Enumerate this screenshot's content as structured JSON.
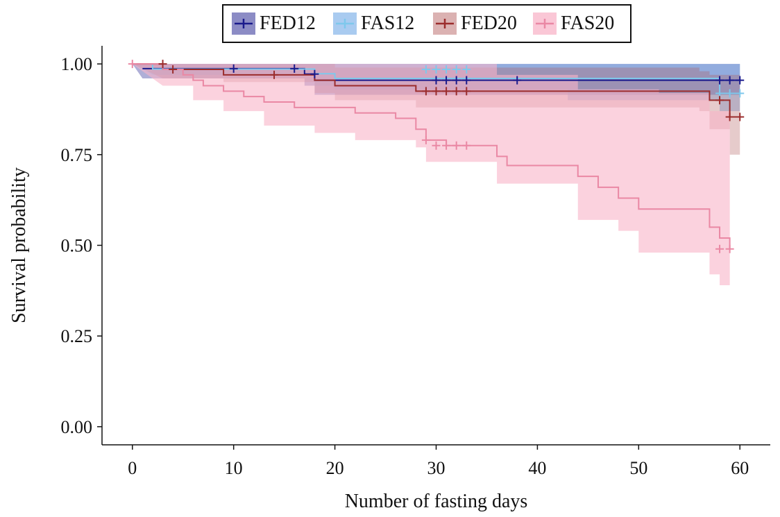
{
  "chart_data": {
    "type": "line",
    "title": "",
    "xlabel": "Number of fasting days",
    "ylabel": "Survival probability",
    "xlim": [
      -3,
      63
    ],
    "ylim": [
      -0.05,
      1.05
    ],
    "xticks": [
      0,
      10,
      20,
      30,
      40,
      50,
      60
    ],
    "yticks": [
      0.0,
      0.25,
      0.5,
      0.75,
      1.0
    ],
    "xtick_labels": [
      "0",
      "10",
      "20",
      "30",
      "40",
      "50",
      "60"
    ],
    "ytick_labels": [
      "0.00",
      "0.25",
      "0.50",
      "0.75",
      "1.00"
    ],
    "grid": false,
    "legend_position": "top-center",
    "series": [
      {
        "name": "FED12",
        "color": "#1a1a8c",
        "fill": "#1a1a8c",
        "fill_opacity": 0.35,
        "step": [
          [
            1,
            0.987
          ],
          [
            17,
            0.972
          ],
          [
            18,
            0.955
          ],
          [
            60,
            0.955
          ]
        ],
        "band_upper": [
          [
            0,
            1.0
          ],
          [
            17,
            1.0
          ],
          [
            43,
            1.0
          ],
          [
            60,
            1.0
          ]
        ],
        "band_lower": [
          [
            1,
            0.96
          ],
          [
            17,
            0.94
          ],
          [
            18,
            0.915
          ],
          [
            43,
            0.915
          ],
          [
            60,
            0.91
          ]
        ],
        "censor_x": [
          10,
          16,
          18,
          30,
          31,
          32,
          33,
          38,
          58,
          59,
          60
        ],
        "censor_y": [
          0.987,
          0.987,
          0.972,
          0.955,
          0.955,
          0.955,
          0.955,
          0.955,
          0.955,
          0.955,
          0.955
        ]
      },
      {
        "name": "FAS12",
        "color": "#7ec8ec",
        "fill": "#6fa9e6",
        "fill_opacity": 0.45,
        "step": [
          [
            0,
            1.0
          ],
          [
            2,
            0.986
          ],
          [
            18,
            0.973
          ],
          [
            20,
            0.96
          ],
          [
            58,
            0.919
          ],
          [
            60,
            0.919
          ]
        ],
        "band_upper": [
          [
            0,
            1.0
          ],
          [
            58,
            1.0
          ],
          [
            60,
            1.0
          ]
        ],
        "band_lower": [
          [
            2,
            0.97
          ],
          [
            18,
            0.94
          ],
          [
            20,
            0.93
          ],
          [
            43,
            0.9
          ],
          [
            58,
            0.87
          ],
          [
            60,
            0.87
          ]
        ],
        "censor_x": [
          29,
          30,
          31,
          32,
          33,
          58,
          59,
          60
        ],
        "censor_y": [
          0.985,
          0.985,
          0.985,
          0.985,
          0.985,
          0.919,
          0.919,
          0.919
        ]
      },
      {
        "name": "FED20",
        "color": "#9b2c2c",
        "fill": "#b25c5c",
        "fill_opacity": 0.32,
        "step": [
          [
            0,
            1.0
          ],
          [
            3,
            0.985
          ],
          [
            9,
            0.97
          ],
          [
            18,
            0.955
          ],
          [
            20,
            0.94
          ],
          [
            28,
            0.925
          ],
          [
            56,
            0.925
          ],
          [
            57,
            0.9
          ],
          [
            59,
            0.854
          ],
          [
            60,
            0.854
          ]
        ],
        "band_upper": [
          [
            0,
            1.0
          ],
          [
            20,
            0.99
          ],
          [
            56,
            0.98
          ],
          [
            57,
            0.97
          ],
          [
            60,
            0.97
          ]
        ],
        "band_lower": [
          [
            3,
            0.96
          ],
          [
            9,
            0.95
          ],
          [
            18,
            0.92
          ],
          [
            20,
            0.9
          ],
          [
            28,
            0.88
          ],
          [
            56,
            0.87
          ],
          [
            57,
            0.82
          ],
          [
            59,
            0.75
          ],
          [
            60,
            0.75
          ]
        ],
        "censor_x": [
          3,
          4,
          14,
          29,
          30,
          31,
          32,
          33,
          58,
          59,
          60
        ],
        "censor_y": [
          1.0,
          0.985,
          0.97,
          0.925,
          0.925,
          0.925,
          0.925,
          0.925,
          0.9,
          0.854,
          0.854
        ]
      },
      {
        "name": "FAS20",
        "color": "#ea88a4",
        "fill": "#f8b4c8",
        "fill_opacity": 0.6,
        "step": [
          [
            0,
            1.0
          ],
          [
            3,
            0.985
          ],
          [
            5,
            0.97
          ],
          [
            6,
            0.955
          ],
          [
            7,
            0.94
          ],
          [
            9,
            0.925
          ],
          [
            11,
            0.91
          ],
          [
            13,
            0.895
          ],
          [
            16,
            0.88
          ],
          [
            22,
            0.865
          ],
          [
            26,
            0.85
          ],
          [
            28,
            0.82
          ],
          [
            29,
            0.79
          ],
          [
            31,
            0.775
          ],
          [
            34,
            0.775
          ],
          [
            36,
            0.745
          ],
          [
            37,
            0.72
          ],
          [
            44,
            0.69
          ],
          [
            46,
            0.66
          ],
          [
            48,
            0.63
          ],
          [
            50,
            0.6
          ],
          [
            56,
            0.6
          ],
          [
            57,
            0.55
          ],
          [
            58,
            0.52
          ],
          [
            59,
            0.49
          ]
        ],
        "band_upper": [
          [
            0,
            1.0
          ],
          [
            20,
            1.0
          ],
          [
            36,
            0.97
          ],
          [
            44,
            0.93
          ],
          [
            52,
            0.92
          ],
          [
            56,
            0.92
          ],
          [
            57,
            0.87
          ],
          [
            59,
            0.85
          ]
        ],
        "band_lower": [
          [
            3,
            0.94
          ],
          [
            6,
            0.9
          ],
          [
            9,
            0.87
          ],
          [
            13,
            0.83
          ],
          [
            18,
            0.81
          ],
          [
            22,
            0.79
          ],
          [
            28,
            0.77
          ],
          [
            29,
            0.73
          ],
          [
            36,
            0.67
          ],
          [
            44,
            0.57
          ],
          [
            48,
            0.54
          ],
          [
            50,
            0.48
          ],
          [
            56,
            0.48
          ],
          [
            57,
            0.42
          ],
          [
            58,
            0.39
          ],
          [
            59,
            0.36
          ]
        ],
        "censor_x": [
          0,
          29,
          30,
          31,
          32,
          33,
          58,
          59
        ],
        "censor_y": [
          1.0,
          0.79,
          0.775,
          0.775,
          0.775,
          0.775,
          0.49,
          0.49
        ]
      }
    ]
  }
}
